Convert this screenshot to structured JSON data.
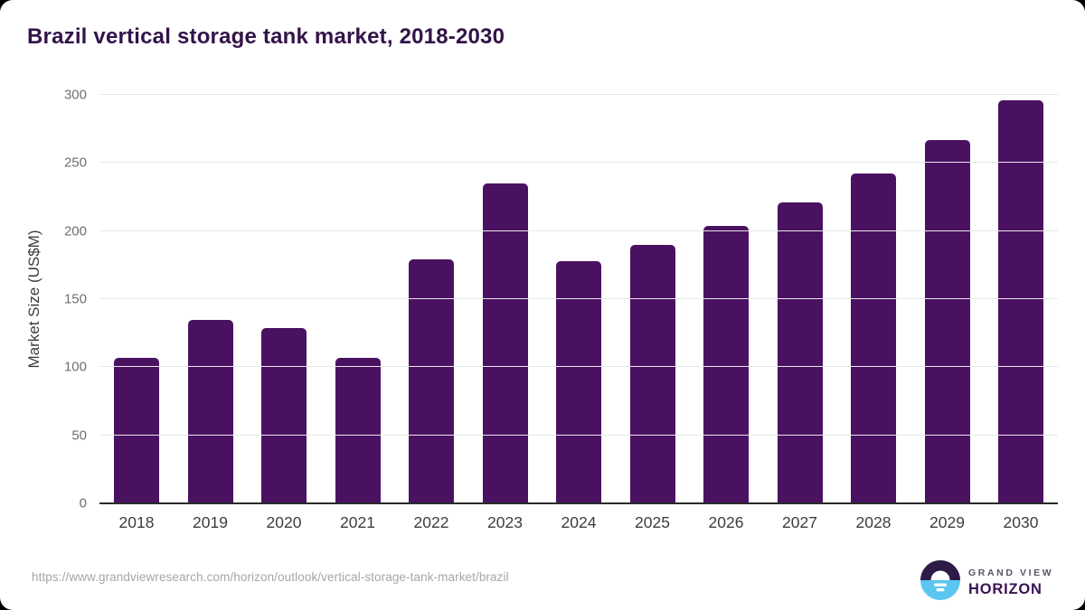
{
  "chart": {
    "title": "Brazil vertical storage tank market, 2018-2030",
    "y_axis_title": "Market Size (US$M)"
  },
  "chart_data": {
    "type": "bar",
    "title": "Brazil vertical storage tank market, 2018-2030",
    "xlabel": "",
    "ylabel": "Market Size (US$M)",
    "categories": [
      "2018",
      "2019",
      "2020",
      "2021",
      "2022",
      "2023",
      "2024",
      "2025",
      "2026",
      "2027",
      "2028",
      "2029",
      "2030"
    ],
    "values": [
      107,
      135,
      129,
      107,
      179,
      235,
      178,
      190,
      204,
      221,
      242,
      267,
      296
    ],
    "ylim": [
      0,
      300
    ],
    "yticks": [
      0,
      50,
      100,
      150,
      200,
      250,
      300
    ],
    "grid": "horizontal",
    "legend": "none",
    "bar_color": "#4A1161"
  },
  "colors": {
    "title": "#331349",
    "bar": "#4A1161",
    "gridline": "#e8e8e8",
    "axis_line": "#2b2b2b",
    "tick_text": "#6f6f6f",
    "logo_purple": "#2C1B47",
    "logo_blue": "#5BC6F0"
  },
  "footer": {
    "source_url": "https://www.grandviewresearch.com/horizon/outlook/vertical-storage-tank-market/brazil",
    "logo": {
      "top": "GRAND VIEW",
      "bottom": "HORIZON"
    }
  }
}
